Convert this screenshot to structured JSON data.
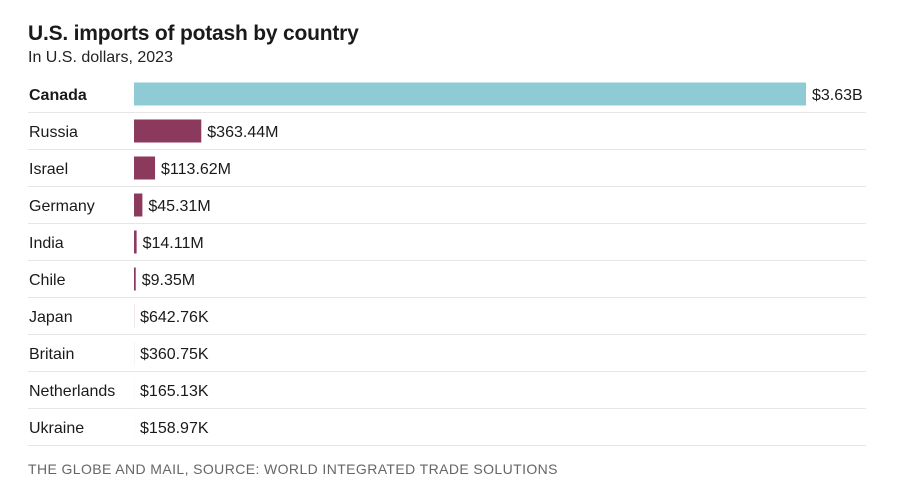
{
  "header": {
    "title": "U.S. imports of potash by country",
    "subtitle": "In U.S. dollars, 2023"
  },
  "footer": {
    "source": "THE GLOBE AND MAIL, SOURCE: WORLD INTEGRATED TRADE SOLUTIONS"
  },
  "chart_data": {
    "type": "bar",
    "orientation": "horizontal",
    "title": "U.S. imports of potash by country",
    "subtitle": "In U.S. dollars, 2023",
    "unit": "USD",
    "categories": [
      "Canada",
      "Russia",
      "Israel",
      "Germany",
      "India",
      "Chile",
      "Japan",
      "Britain",
      "Netherlands",
      "Ukraine"
    ],
    "values": [
      3630000000,
      363440000,
      113620000,
      45310000,
      14110000,
      9350000,
      642760,
      360750,
      165130,
      158970
    ],
    "labels": [
      "$3.63B",
      "$363.44M",
      "$113.62M",
      "$45.31M",
      "$14.11M",
      "$9.35M",
      "$642.76K",
      "$360.75K",
      "$165.13K",
      "$158.97K"
    ],
    "highlight": "Canada",
    "colors": {
      "highlight": "#8ecbd4",
      "default": "#8b3a5e",
      "separator": "#e6e6e6"
    },
    "xlim": [
      0,
      3630000000
    ],
    "grid": false,
    "legend": "none"
  }
}
